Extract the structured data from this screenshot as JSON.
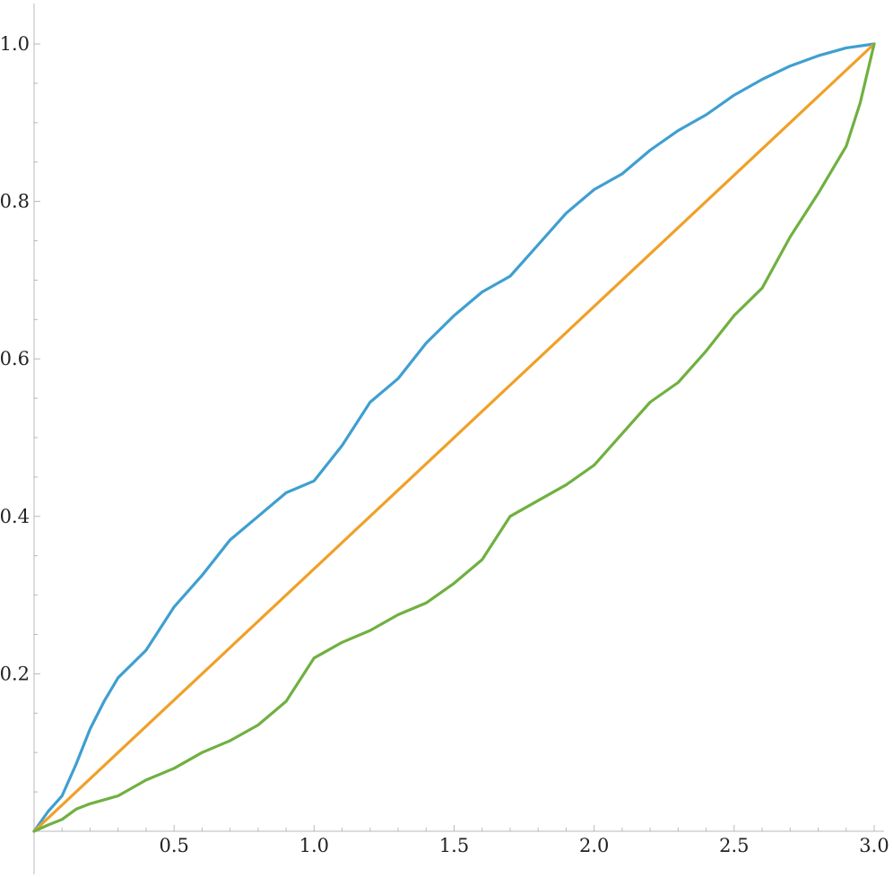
{
  "chart_data": {
    "type": "line",
    "title": "",
    "xlabel": "",
    "ylabel": "",
    "xlim": [
      0,
      3
    ],
    "ylim": [
      0,
      1
    ],
    "grid": false,
    "legend": "none",
    "x_ticks": [
      {
        "value": 0.5,
        "label": "0.5"
      },
      {
        "value": 1.0,
        "label": "1.0"
      },
      {
        "value": 1.5,
        "label": "1.5"
      },
      {
        "value": 2.0,
        "label": "2.0"
      },
      {
        "value": 2.5,
        "label": "2.5"
      },
      {
        "value": 3.0,
        "label": "3.0"
      }
    ],
    "y_ticks": [
      {
        "value": 0.2,
        "label": "0.2"
      },
      {
        "value": 0.4,
        "label": "0.4"
      },
      {
        "value": 0.6,
        "label": "0.6"
      },
      {
        "value": 0.8,
        "label": "0.8"
      },
      {
        "value": 1.0,
        "label": "1.0"
      }
    ],
    "series": [
      {
        "color": "#3f9fd0",
        "points": [
          [
            0,
            0
          ],
          [
            0.05,
            0.025
          ],
          [
            0.1,
            0.045
          ],
          [
            0.15,
            0.085
          ],
          [
            0.2,
            0.13
          ],
          [
            0.25,
            0.165
          ],
          [
            0.3,
            0.195
          ],
          [
            0.4,
            0.23
          ],
          [
            0.5,
            0.285
          ],
          [
            0.6,
            0.325
          ],
          [
            0.7,
            0.37
          ],
          [
            0.8,
            0.4
          ],
          [
            0.9,
            0.43
          ],
          [
            1.0,
            0.445
          ],
          [
            1.1,
            0.49
          ],
          [
            1.2,
            0.545
          ],
          [
            1.3,
            0.575
          ],
          [
            1.4,
            0.62
          ],
          [
            1.5,
            0.655
          ],
          [
            1.6,
            0.685
          ],
          [
            1.7,
            0.705
          ],
          [
            1.8,
            0.745
          ],
          [
            1.9,
            0.785
          ],
          [
            2.0,
            0.815
          ],
          [
            2.1,
            0.835
          ],
          [
            2.2,
            0.865
          ],
          [
            2.3,
            0.89
          ],
          [
            2.4,
            0.91
          ],
          [
            2.5,
            0.935
          ],
          [
            2.6,
            0.955
          ],
          [
            2.7,
            0.972
          ],
          [
            2.8,
            0.985
          ],
          [
            2.9,
            0.995
          ],
          [
            3.0,
            1.0
          ]
        ]
      },
      {
        "color": "#f0a028",
        "points": [
          [
            0,
            0
          ],
          [
            3.0,
            1.0
          ]
        ]
      },
      {
        "color": "#70b040",
        "points": [
          [
            0,
            0
          ],
          [
            0.05,
            0.008
          ],
          [
            0.1,
            0.015
          ],
          [
            0.15,
            0.028
          ],
          [
            0.2,
            0.035
          ],
          [
            0.3,
            0.045
          ],
          [
            0.4,
            0.065
          ],
          [
            0.5,
            0.08
          ],
          [
            0.6,
            0.1
          ],
          [
            0.7,
            0.115
          ],
          [
            0.8,
            0.135
          ],
          [
            0.9,
            0.165
          ],
          [
            1.0,
            0.22
          ],
          [
            1.1,
            0.24
          ],
          [
            1.2,
            0.255
          ],
          [
            1.3,
            0.275
          ],
          [
            1.4,
            0.29
          ],
          [
            1.5,
            0.315
          ],
          [
            1.6,
            0.345
          ],
          [
            1.7,
            0.4
          ],
          [
            1.8,
            0.42
          ],
          [
            1.9,
            0.44
          ],
          [
            2.0,
            0.465
          ],
          [
            2.1,
            0.505
          ],
          [
            2.2,
            0.545
          ],
          [
            2.3,
            0.57
          ],
          [
            2.4,
            0.61
          ],
          [
            2.5,
            0.655
          ],
          [
            2.6,
            0.69
          ],
          [
            2.7,
            0.755
          ],
          [
            2.8,
            0.81
          ],
          [
            2.9,
            0.87
          ],
          [
            2.95,
            0.925
          ],
          [
            3.0,
            1.0
          ]
        ]
      }
    ]
  }
}
